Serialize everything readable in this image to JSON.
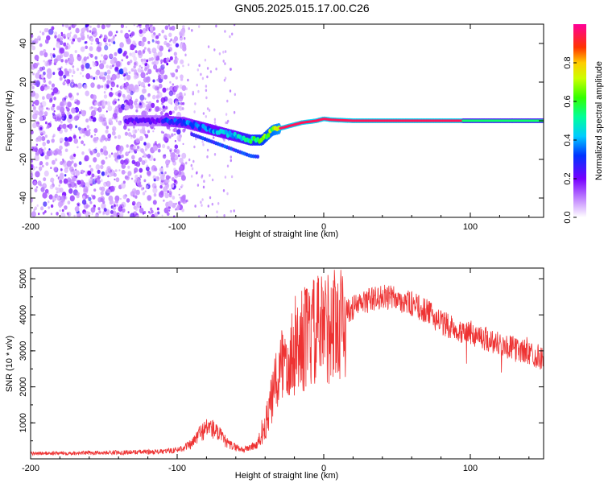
{
  "title": "GN05.2025.015.17.00.C26",
  "chart_data": [
    {
      "type": "heatmap",
      "xlabel": "Height of straight line (km)",
      "ylabel": "Frequency (Hz)",
      "xlim": [
        -200,
        150
      ],
      "ylim": [
        -50,
        50
      ],
      "xticks": [
        -200,
        -100,
        0,
        100
      ],
      "yticks": [
        -40,
        -20,
        0,
        20,
        40
      ],
      "colorbar": {
        "label": "Normalized spectral amplitude",
        "range": [
          0,
          1
        ],
        "ticks": [
          0.0,
          0.2,
          0.4,
          0.6,
          0.8
        ],
        "tick_labels": [
          "0.0",
          "0.2",
          "0.4",
          "0.6",
          "0.8"
        ]
      },
      "ridge": {
        "x": [
          -130,
          -110,
          -95,
          -80,
          -70,
          -60,
          -50,
          -42,
          -35,
          -25,
          -15,
          -5,
          0,
          5,
          20,
          60,
          100,
          150
        ],
        "freq": [
          0,
          0,
          -1,
          -4,
          -6,
          -8,
          -10,
          -10,
          -5,
          -3,
          -1,
          0,
          1,
          0.5,
          0,
          0,
          0,
          0
        ]
      },
      "noise_region": {
        "x_start": -200,
        "x_end": -95
      }
    },
    {
      "type": "line",
      "xlabel": "Height of straight line (km)",
      "ylabel": "SNR (10 * v/v)",
      "xlim": [
        -200,
        150
      ],
      "ylim": [
        0,
        5300
      ],
      "xticks": [
        -200,
        -100,
        0,
        100
      ],
      "yticks": [
        1000,
        2000,
        3000,
        4000,
        5000
      ],
      "color": "#ee3333",
      "envelope": {
        "x": [
          -200,
          -150,
          -110,
          -100,
          -90,
          -85,
          -78,
          -72,
          -65,
          -55,
          -45,
          -40,
          -35,
          -30,
          -25,
          -20,
          -15,
          -10,
          -5,
          0,
          10,
          20,
          30,
          40,
          50,
          60,
          70,
          80,
          90,
          100,
          110,
          120,
          130,
          140,
          150
        ],
        "y": [
          150,
          170,
          200,
          250,
          400,
          700,
          900,
          700,
          400,
          250,
          400,
          900,
          1700,
          2500,
          2900,
          3100,
          3300,
          3400,
          3500,
          3600,
          3900,
          4200,
          4400,
          4500,
          4450,
          4300,
          4100,
          3800,
          3600,
          3500,
          3350,
          3200,
          3050,
          2950,
          2800
        ]
      }
    }
  ]
}
